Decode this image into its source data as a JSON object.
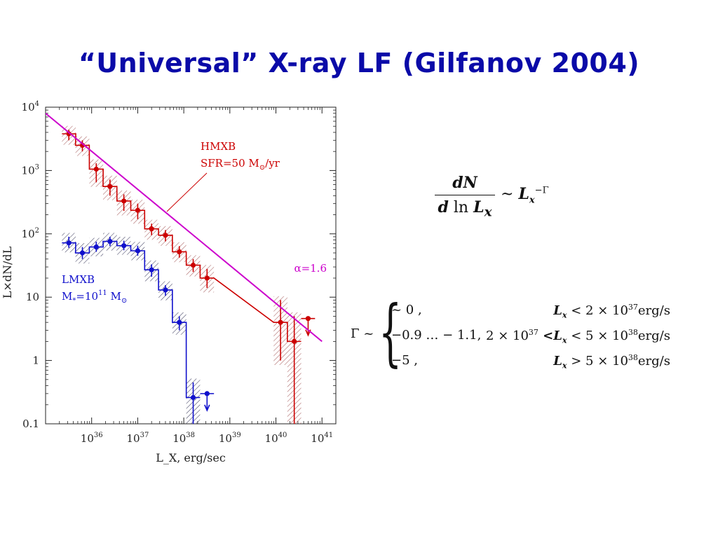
{
  "slide": {
    "title": "“Universal” X-ray LF (Gilfanov 2004)"
  },
  "chart_data": {
    "type": "line",
    "x_scale": "log",
    "y_scale": "log",
    "xlabel": "L_X, erg/sec",
    "ylabel": "L×dN/dL",
    "xlim": [
      1e+35,
      2e+41
    ],
    "ylim": [
      0.1,
      10000
    ],
    "x_ticks": [
      {
        "value": 1e+36,
        "mant": "10",
        "exp": "36"
      },
      {
        "value": 1e+37,
        "mant": "10",
        "exp": "37"
      },
      {
        "value": 1e+38,
        "mant": "10",
        "exp": "38"
      },
      {
        "value": 1e+39,
        "mant": "10",
        "exp": "39"
      },
      {
        "value": 1e+40,
        "mant": "10",
        "exp": "40"
      },
      {
        "value": 1e+41,
        "mant": "10",
        "exp": "41"
      }
    ],
    "y_ticks": [
      {
        "value": 0.1,
        "mant": "0.1",
        "exp": ""
      },
      {
        "value": 1,
        "mant": "1",
        "exp": ""
      },
      {
        "value": 10,
        "mant": "10",
        "exp": ""
      },
      {
        "value": 100,
        "mant": "10",
        "exp": "2"
      },
      {
        "value": 1000,
        "mant": "10",
        "exp": "3"
      },
      {
        "value": 10000,
        "mant": "10",
        "exp": "4"
      }
    ],
    "grid": false,
    "series": [
      {
        "name": "HMXB",
        "color": "#cc0000",
        "hatch": "#a05050",
        "style": "step-with-errors",
        "points": [
          {
            "x": 3.2e+35,
            "y": 3800,
            "elo": 3000,
            "ehi": 4400
          },
          {
            "x": 6.3e+35,
            "y": 2500,
            "elo": 2000,
            "ehi": 3000
          },
          {
            "x": 1.26e+36,
            "y": 1050,
            "elo": 650,
            "ehi": 1300
          },
          {
            "x": 2.5e+36,
            "y": 560,
            "elo": 400,
            "ehi": 720
          },
          {
            "x": 5e+36,
            "y": 330,
            "elo": 230,
            "ehi": 420
          },
          {
            "x": 1e+37,
            "y": 235,
            "elo": 170,
            "ehi": 300
          },
          {
            "x": 2e+37,
            "y": 120,
            "elo": 95,
            "ehi": 145
          },
          {
            "x": 4e+37,
            "y": 95,
            "elo": 76,
            "ehi": 115
          },
          {
            "x": 8e+37,
            "y": 52,
            "elo": 42,
            "ehi": 64
          },
          {
            "x": 1.6e+38,
            "y": 32,
            "elo": 25,
            "ehi": 40
          },
          {
            "x": 3.2e+38,
            "y": 20,
            "elo": 14,
            "ehi": 28
          },
          {
            "x": 1.26e+40,
            "y": 4.0,
            "elo": 1.0,
            "ehi": 9.0
          },
          {
            "x": 2.5e+40,
            "y": 2.0,
            "elo": 0.1,
            "ehi": 5.0
          }
        ],
        "upper_limit": {
          "x": 5e+40,
          "y": 4.6
        },
        "annotation_lines": [
          "HMXB",
          "SFR=50 M",
          "/yr"
        ]
      },
      {
        "name": "LMXB",
        "color": "#1010cc",
        "hatch": "#303060",
        "style": "step-with-errors",
        "points": [
          {
            "x": 3.2e+35,
            "y": 72,
            "elo": 60,
            "ehi": 90
          },
          {
            "x": 6.3e+35,
            "y": 50,
            "elo": 40,
            "ehi": 62
          },
          {
            "x": 1.26e+36,
            "y": 62,
            "elo": 52,
            "ehi": 75
          },
          {
            "x": 2.5e+36,
            "y": 76,
            "elo": 64,
            "ehi": 90
          },
          {
            "x": 5e+36,
            "y": 65,
            "elo": 55,
            "ehi": 78
          },
          {
            "x": 1e+37,
            "y": 54,
            "elo": 45,
            "ehi": 65
          },
          {
            "x": 2e+37,
            "y": 27,
            "elo": 21,
            "ehi": 33
          },
          {
            "x": 4e+37,
            "y": 13,
            "elo": 10.5,
            "ehi": 15.5
          },
          {
            "x": 8e+37,
            "y": 4.0,
            "elo": 3.0,
            "ehi": 5.0
          },
          {
            "x": 1.6e+38,
            "y": 0.26,
            "elo": 0.1,
            "ehi": 0.45
          }
        ],
        "upper_limit": {
          "x": 3.2e+38,
          "y": 0.3
        },
        "annotation_lines": [
          "LMXB",
          "M",
          "=10",
          "11",
          " M"
        ]
      },
      {
        "name": "α=1.6",
        "color": "#cc00cc",
        "style": "fit-line",
        "points": [
          {
            "x": 1e+35,
            "y": 8000
          },
          {
            "x": 1e+41,
            "y": 2.0
          }
        ]
      }
    ]
  },
  "equation_main": {
    "numerator": "dN",
    "den_d": "d",
    "den_ln": "ln",
    "den_L": "L",
    "den_sub": "x",
    "sim": "~",
    "rhs_L": "L",
    "rhs_sub": "x",
    "rhs_sup": "−Γ"
  },
  "equation_cases": {
    "lhs": "Γ ~",
    "rows": [
      {
        "value": "~ 0 ,",
        "cond_pre": "",
        "cond_L": "L",
        "cond_sub": "x",
        "cond_post": "< 2 × 10",
        "cond_sup": "37",
        "cond_unit": "erg/s"
      },
      {
        "value": "−0.9 … − 1.1,",
        "cond_pre": "2 × 10",
        "cond_pre_sup": "37",
        "cond_L": " <L",
        "cond_sub": "x",
        "cond_post": "< 5 × 10",
        "cond_sup": "38",
        "cond_unit": "erg/s"
      },
      {
        "value": "−5 ,",
        "cond_pre": "",
        "cond_L": "L",
        "cond_sub": "x",
        "cond_post": "> 5 × 10",
        "cond_sup": "38",
        "cond_unit": "erg/s"
      }
    ]
  }
}
